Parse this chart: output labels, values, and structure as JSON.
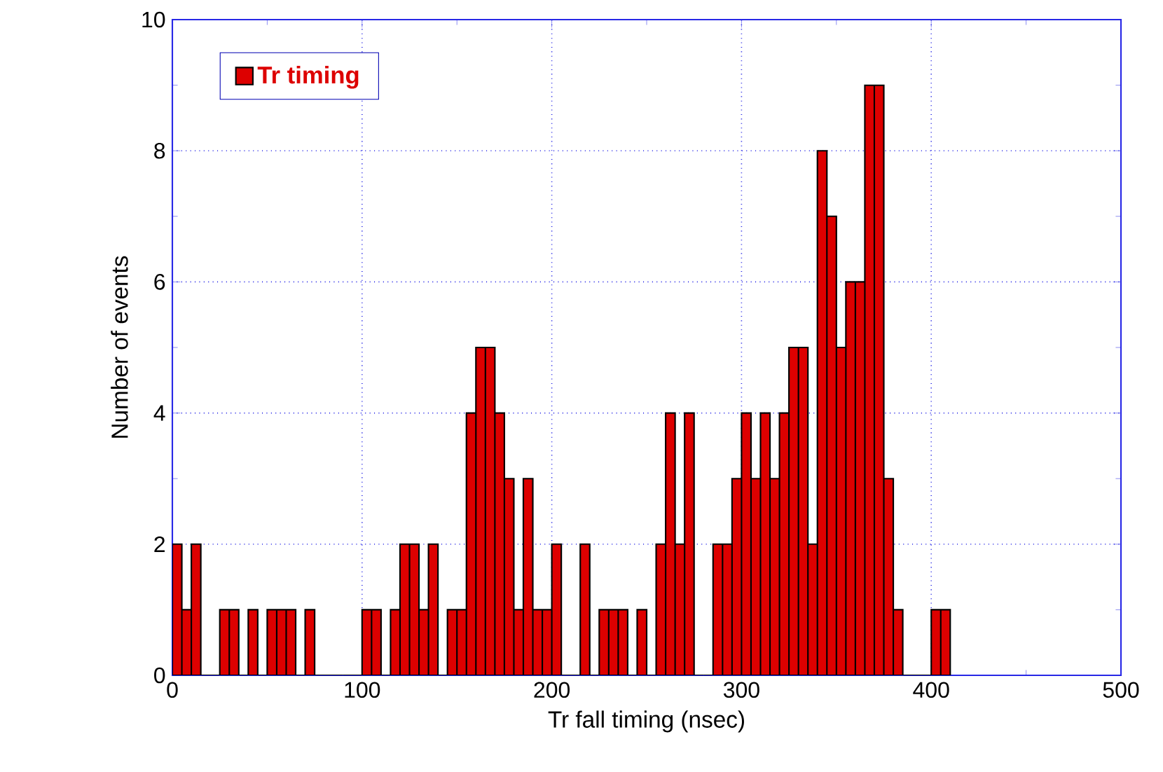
{
  "chart_data": {
    "type": "histogram",
    "xlabel": "Tr fall timing (nsec)",
    "ylabel": "Number of events",
    "bins": [
      0,
      5,
      10,
      15,
      20,
      25,
      30,
      35,
      40,
      45,
      50,
      55,
      60,
      65,
      70,
      75,
      80,
      85,
      90,
      95,
      100,
      105,
      110,
      115,
      120,
      125,
      130,
      135,
      140,
      145,
      150,
      155,
      160,
      165,
      170,
      175,
      180,
      185,
      190,
      195,
      200,
      205,
      210,
      215,
      220,
      225,
      230,
      235,
      240,
      245,
      250,
      255,
      260,
      265,
      270,
      275,
      280,
      285,
      290,
      295,
      300,
      305,
      310,
      315,
      320,
      325,
      330,
      335,
      340,
      345,
      350,
      355,
      360,
      365,
      370,
      375,
      380,
      385,
      390,
      395,
      400,
      405,
      410
    ],
    "series": [
      {
        "name": "Tr timing",
        "color": "#dd0000",
        "values": [
          2,
          1,
          2,
          0,
          0,
          1,
          1,
          0,
          1,
          0,
          1,
          1,
          1,
          0,
          1,
          0,
          0,
          0,
          0,
          0,
          1,
          1,
          0,
          1,
          2,
          2,
          1,
          2,
          0,
          1,
          1,
          4,
          5,
          5,
          4,
          3,
          1,
          3,
          1,
          1,
          2,
          0,
          0,
          2,
          0,
          1,
          1,
          1,
          0,
          1,
          0,
          2,
          4,
          2,
          4,
          0,
          0,
          2,
          2,
          3,
          4,
          3,
          4,
          3,
          4,
          5,
          5,
          2,
          8,
          7,
          5,
          6,
          6,
          9,
          9,
          3,
          1,
          0,
          0,
          0,
          1,
          1
        ]
      }
    ],
    "xlim": [
      0,
      500
    ],
    "xticks": [
      0,
      100,
      200,
      300,
      400,
      500
    ],
    "ylim": [
      0,
      10
    ],
    "yticks": [
      0,
      2,
      4,
      6,
      8,
      10
    ],
    "grid": true,
    "legend": "top left"
  }
}
